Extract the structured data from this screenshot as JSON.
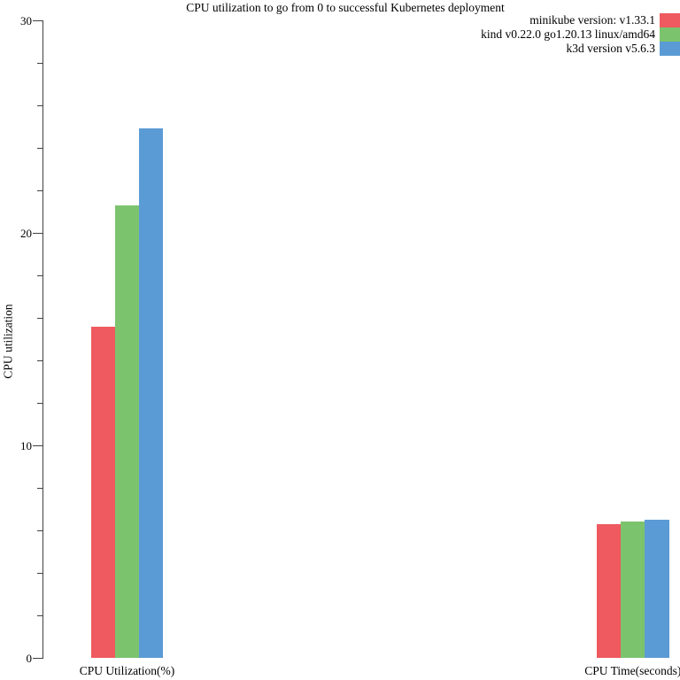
{
  "chart_data": {
    "type": "bar",
    "title": "CPU utilization to go from 0 to successful Kubernetes deployment",
    "ylabel": "CPU utilization",
    "xlabel": "",
    "categories": [
      "CPU Utilization(%)",
      "CPU Time(seconds)"
    ],
    "series": [
      {
        "name": "minikube version: v1.33.1",
        "color": "#ee5a5f",
        "values": [
          15.6,
          6.3
        ]
      },
      {
        "name": "kind v0.22.0 go1.20.13 linux/amd64",
        "color": "#7cc36d",
        "values": [
          21.3,
          6.4
        ]
      },
      {
        "name": "k3d version v5.6.3",
        "color": "#5b9bd5",
        "values": [
          24.9,
          6.5
        ]
      }
    ],
    "ylim": [
      0,
      30
    ],
    "yticks": [
      0,
      10,
      20,
      30
    ],
    "minor_tick_step": 2,
    "legend_position": "top-right",
    "grid": false,
    "axis_color": "#404040",
    "text_color": "#000000",
    "background": "#ffffff"
  }
}
